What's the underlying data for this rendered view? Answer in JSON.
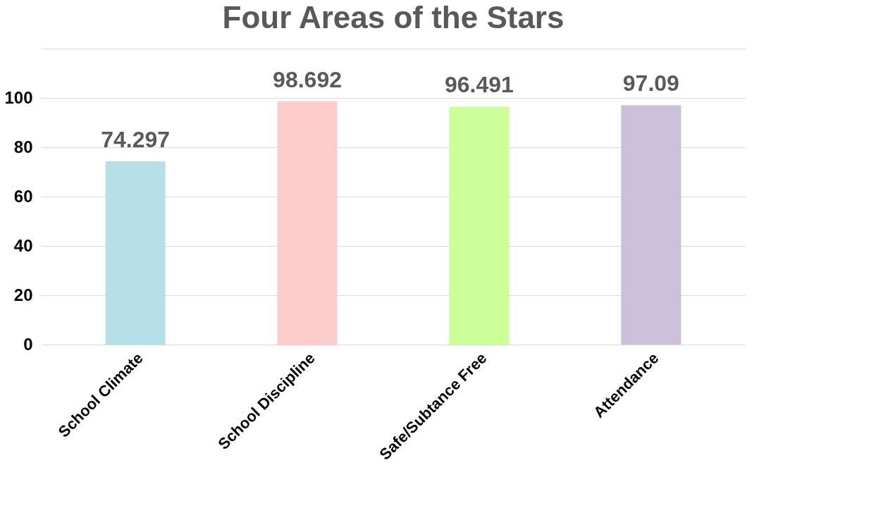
{
  "chart_data": {
    "type": "bar",
    "title": "Four Areas of the Stars",
    "categories": [
      "School Climate",
      "School Discipline",
      "Safe/Subtance Free",
      "Attendance"
    ],
    "values": [
      74.297,
      98.692,
      96.491,
      97.09
    ],
    "colors": [
      "#b7dfe8",
      "#ffcccc",
      "#ccff99",
      "#ccc0da"
    ],
    "ylim": [
      0,
      120
    ],
    "yticks": [
      0,
      20,
      40,
      60,
      80,
      100,
      {
        "value": 120,
        "label": null
      }
    ],
    "grid": "y",
    "data_labels": true,
    "legend": false
  }
}
